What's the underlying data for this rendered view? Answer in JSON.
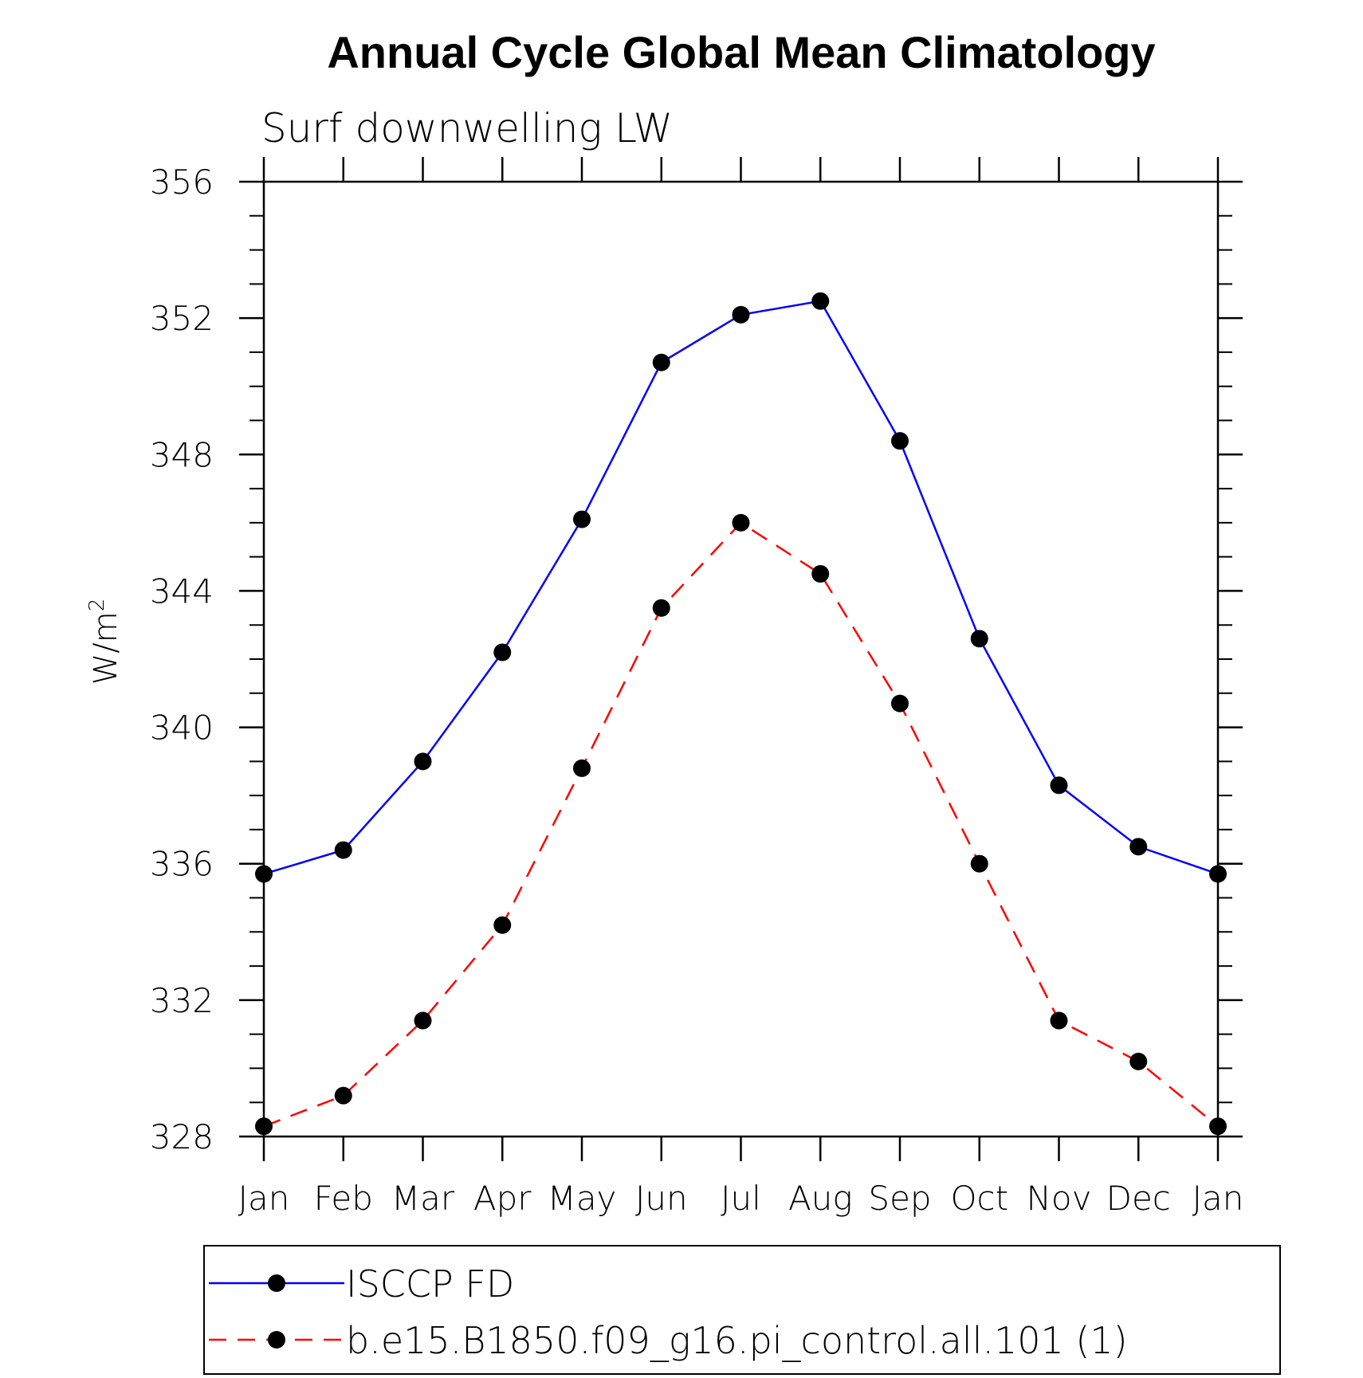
{
  "chart_data": {
    "type": "line",
    "title": "Annual Cycle Global Mean Climatology",
    "subtitle": "Surf downwelling LW",
    "ylabel": "W/m",
    "ylabel_superscript": "2",
    "categories": [
      "Jan",
      "Feb",
      "Mar",
      "Apr",
      "May",
      "Jun",
      "Jul",
      "Aug",
      "Sep",
      "Oct",
      "Nov",
      "Dec",
      "Jan"
    ],
    "ylim": [
      328,
      356
    ],
    "yticks": [
      328,
      332,
      336,
      340,
      344,
      348,
      352,
      356
    ],
    "y_minor_step": 1,
    "series": [
      {
        "name": "ISCCP FD",
        "color": "#0000ff",
        "dash": "solid",
        "values": [
          335.7,
          336.4,
          339.0,
          342.2,
          346.1,
          350.7,
          352.1,
          352.5,
          348.4,
          342.6,
          338.3,
          336.5,
          335.7
        ]
      },
      {
        "name": "b.e15.B1850.f09_g16.pi_control.all.101 (1)",
        "color": "#ff0000",
        "dash": "dashed",
        "values": [
          328.3,
          329.2,
          331.4,
          334.2,
          338.8,
          343.5,
          346.0,
          344.5,
          340.7,
          336.0,
          331.4,
          330.2,
          328.3
        ]
      }
    ],
    "marker_color": "#000000",
    "grid": false,
    "legend_position": "bottom"
  }
}
